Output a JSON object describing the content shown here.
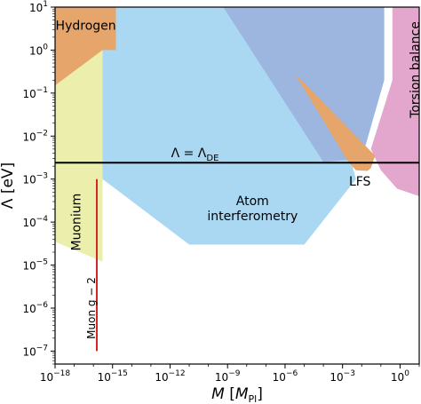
{
  "chart_data": {
    "type": "area",
    "title": "",
    "xlabel": "M [M",
    "xlabel_sub": "Pl",
    "xlabel_end": "]",
    "ylabel": "Λ [eV]",
    "x_scale": "log",
    "y_scale": "log",
    "xlim": [
      1e-18,
      10
    ],
    "ylim": [
      5e-08,
      10
    ],
    "x_ticks": [
      {
        "value": 1e-18,
        "base": "10",
        "exp": "−18"
      },
      {
        "value": 1e-15,
        "base": "10",
        "exp": "−15"
      },
      {
        "value": 1e-12,
        "base": "10",
        "exp": "−12"
      },
      {
        "value": 1e-09,
        "base": "10",
        "exp": "−9"
      },
      {
        "value": 1e-06,
        "base": "10",
        "exp": "−6"
      },
      {
        "value": 0.001,
        "base": "10",
        "exp": "−3"
      },
      {
        "value": 1,
        "base": "10",
        "exp": "0"
      }
    ],
    "y_ticks": [
      {
        "value": 1e-07,
        "base": "10",
        "exp": "−7"
      },
      {
        "value": 1e-06,
        "base": "10",
        "exp": "−6"
      },
      {
        "value": 1e-05,
        "base": "10",
        "exp": "−5"
      },
      {
        "value": 0.0001,
        "base": "10",
        "exp": "−4"
      },
      {
        "value": 0.001,
        "base": "10",
        "exp": "−3"
      },
      {
        "value": 0.01,
        "base": "10",
        "exp": "−2"
      },
      {
        "value": 0.1,
        "base": "10",
        "exp": "−1"
      },
      {
        "value": 1,
        "base": "10",
        "exp": "0"
      },
      {
        "value": 10,
        "base": "10",
        "exp": "1"
      }
    ],
    "regions": [
      {
        "name": "Atom interferometry",
        "color": "#aad8f2",
        "opacity": 1,
        "points": [
          [
            3e-16,
            10
          ],
          [
            4e-12,
            10
          ],
          [
            0.00015,
            10
          ],
          [
            0.00015,
            0.3
          ],
          [
            0.005,
            0.001
          ],
          [
            1e-05,
            3e-05
          ],
          [
            1e-07,
            3e-05
          ],
          [
            1e-11,
            3e-05
          ],
          [
            3e-16,
            0.001
          ]
        ],
        "label_lines": [
          "Atom",
          "interferometry"
        ],
        "label_pos": [
          2e-08,
          0.00025
        ]
      },
      {
        "name": "Atom interferometry (upper)",
        "color": "#9cb6e0",
        "opacity": 1,
        "points": [
          [
            6e-10,
            10
          ],
          [
            0.15,
            10
          ],
          [
            0.15,
            0.2
          ],
          [
            0.01,
            0.003
          ],
          [
            0.0001,
            0.0025
          ]
        ],
        "label_lines": [],
        "label_pos": null
      },
      {
        "name": "Muonium",
        "color": "#e8ec9c",
        "opacity": 0.85,
        "points": [
          [
            1e-18,
            0.15
          ],
          [
            3e-16,
            1.0
          ],
          [
            3e-16,
            1.2e-05
          ],
          [
            1e-18,
            3.5e-05
          ]
        ],
        "label_lines": [
          "Muonium"
        ],
        "label_pos": [
          1.2e-17,
          0.0001
        ]
      },
      {
        "name": "Hydrogen",
        "color": "#e5a56b",
        "opacity": 1,
        "points": [
          [
            1e-18,
            10
          ],
          [
            1.5e-15,
            10
          ],
          [
            1.5e-15,
            1.0
          ],
          [
            3e-16,
            1.0
          ],
          [
            1e-18,
            0.15
          ]
        ],
        "label_lines": [
          "Hydrogen"
        ],
        "label_pos": [
          4e-17,
          3
        ]
      },
      {
        "name": "Torsion balance",
        "color": "#e3a6cc",
        "opacity": 1,
        "points": [
          [
            0.4,
            10
          ],
          [
            10,
            10
          ],
          [
            10,
            0.0004
          ],
          [
            0.7,
            0.0006
          ],
          [
            0.1,
            0.0016
          ],
          [
            0.03,
            0.005
          ],
          [
            0.4,
            0.2
          ]
        ],
        "label_lines": [
          "Torsion balance"
        ],
        "label_pos": [
          6,
          0.35
        ]
      },
      {
        "name": "LFS",
        "color": "#e5a56b",
        "opacity": 1,
        "points": [
          [
            3e-06,
            0.3
          ],
          [
            0.05,
            0.0035
          ],
          [
            0.03,
            0.0018
          ],
          [
            0.02,
            0.00155
          ],
          [
            0.005,
            0.0016
          ],
          [
            0.002,
            0.0025
          ]
        ],
        "label_lines": [
          "LFS"
        ],
        "label_pos": [
          0.008,
          0.0007
        ]
      }
    ],
    "lines": [
      {
        "name": "Λ = ΛDE",
        "color": "#000000",
        "points": [
          [
            1e-18,
            0.0024
          ],
          [
            10,
            0.0024
          ]
        ],
        "label_main": "Λ = Λ",
        "label_sub": "DE",
        "label_pos": [
          2e-11,
          0.0032
        ]
      },
      {
        "name": "Muon g − 2",
        "color": "#d62728",
        "points": [
          [
            1.5e-16,
            0.001
          ],
          [
            1.5e-16,
            1e-07
          ]
        ],
        "label_lines": [
          "Muon g − 2"
        ],
        "label_pos": [
          8e-17,
          1e-06
        ]
      }
    ]
  }
}
